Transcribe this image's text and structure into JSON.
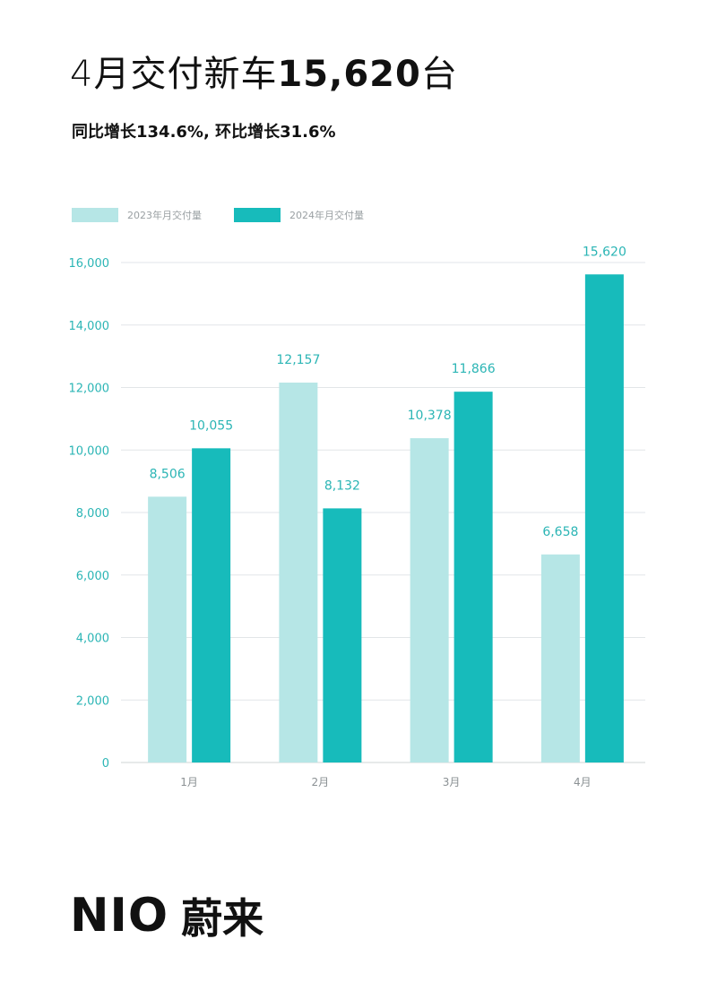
{
  "header": {
    "title_prefix": "4月交付新车",
    "title_number": "15,620",
    "title_suffix": "台",
    "subtitle": "同比增长134.6%, 环比增长31.6%"
  },
  "colors": {
    "series_2023": "#b6e6e6",
    "series_2024": "#17bbbb",
    "grid": "#e2e6e8",
    "axis_text": "#2bb5b5"
  },
  "chart_data": {
    "type": "bar",
    "categories": [
      "1月",
      "2月",
      "3月",
      "4月"
    ],
    "series": [
      {
        "name": "2023年月交付量",
        "values": [
          8506,
          12157,
          10378,
          6658
        ],
        "labels": [
          "8,506",
          "12,157",
          "10,378",
          "6,658"
        ]
      },
      {
        "name": "2024年月交付量",
        "values": [
          10055,
          8132,
          11866,
          15620
        ],
        "labels": [
          "10,055",
          "8,132",
          "11,866",
          "15,620"
        ]
      }
    ],
    "yticks": [
      0,
      2000,
      4000,
      6000,
      8000,
      10000,
      12000,
      14000,
      16000
    ],
    "ytick_labels": [
      "0",
      "2,000",
      "4,000",
      "6,000",
      "8,000",
      "10,000",
      "12,000",
      "14,000",
      "16,000"
    ],
    "ylim": [
      0,
      16000
    ],
    "grid": true,
    "legend_position": "top-left"
  },
  "footer": {
    "brand_latin": "NIO",
    "brand_cn": "蔚来"
  }
}
